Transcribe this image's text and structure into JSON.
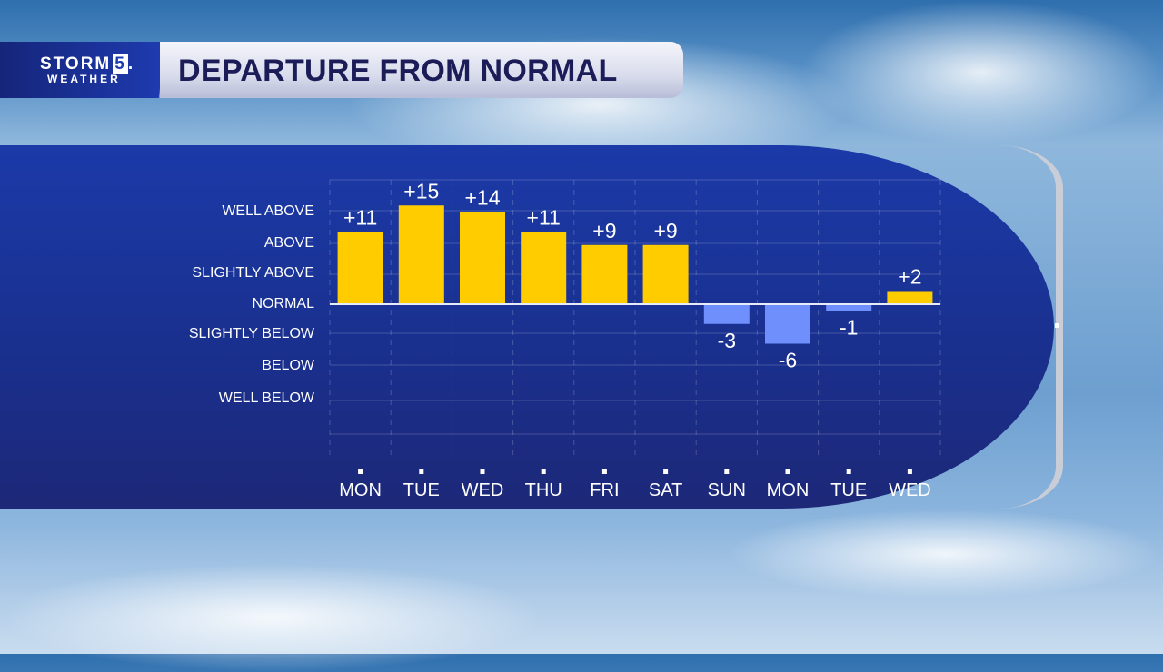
{
  "header": {
    "logo_line1": "STORM",
    "logo_number": "5",
    "logo_line2": "WEATHER",
    "title": "DEPARTURE FROM NORMAL"
  },
  "colors": {
    "above": "#ffcc00",
    "below": "#6f8ffc",
    "panel": "#1b3aa8"
  },
  "chart_data": {
    "type": "bar",
    "title": "DEPARTURE FROM NORMAL",
    "categories": [
      "MON",
      "TUE",
      "WED",
      "THU",
      "FRI",
      "SAT",
      "SUN",
      "MON",
      "TUE",
      "WED"
    ],
    "values": [
      11,
      15,
      14,
      11,
      9,
      9,
      -3,
      -6,
      -1,
      2
    ],
    "labels": [
      "+11",
      "+15",
      "+14",
      "+11",
      "+9",
      "+9",
      "-3",
      "-6",
      "-1",
      "+2"
    ],
    "y_category_labels": [
      "WELL ABOVE",
      "ABOVE",
      "SLIGHTLY ABOVE",
      "NORMAL",
      "SLIGHTLY BELOW",
      "BELOW",
      "WELL BELOW"
    ],
    "ylim": [
      -20,
      19
    ],
    "grid": true
  }
}
